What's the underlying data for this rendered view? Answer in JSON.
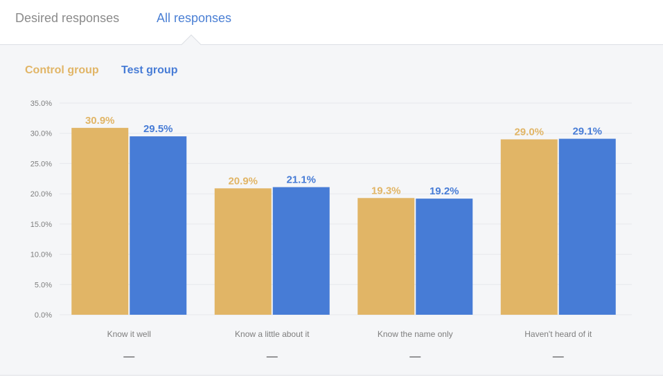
{
  "tabs": [
    {
      "label": "Desired responses",
      "active": false
    },
    {
      "label": "All responses",
      "active": true
    }
  ],
  "colors": {
    "control": "#e1b566",
    "test": "#477cd6",
    "grid": "#e6e8ec",
    "axis_text": "#7d7d7d"
  },
  "chart_data": {
    "type": "bar",
    "title": "",
    "xlabel": "",
    "ylabel": "",
    "ylim": [
      0,
      35
    ],
    "yticks": [
      "0.0%",
      "5.0%",
      "10.0%",
      "15.0%",
      "20.0%",
      "25.0%",
      "30.0%",
      "35.0%"
    ],
    "grid": true,
    "legend_placement": "top-left",
    "categories": [
      "Know it well",
      "Know a little about it",
      "Know the name only",
      "Haven't heard of it"
    ],
    "series": [
      {
        "name": "Control group",
        "values": [
          30.9,
          20.9,
          19.3,
          29.0
        ],
        "labels": [
          "30.9%",
          "20.9%",
          "19.3%",
          "29.0%"
        ]
      },
      {
        "name": "Test group",
        "values": [
          29.5,
          21.1,
          19.2,
          29.1
        ],
        "labels": [
          "29.5%",
          "21.1%",
          "19.2%",
          "29.1%"
        ]
      }
    ],
    "category_markers": [
      "—",
      "—",
      "—",
      "—"
    ]
  }
}
